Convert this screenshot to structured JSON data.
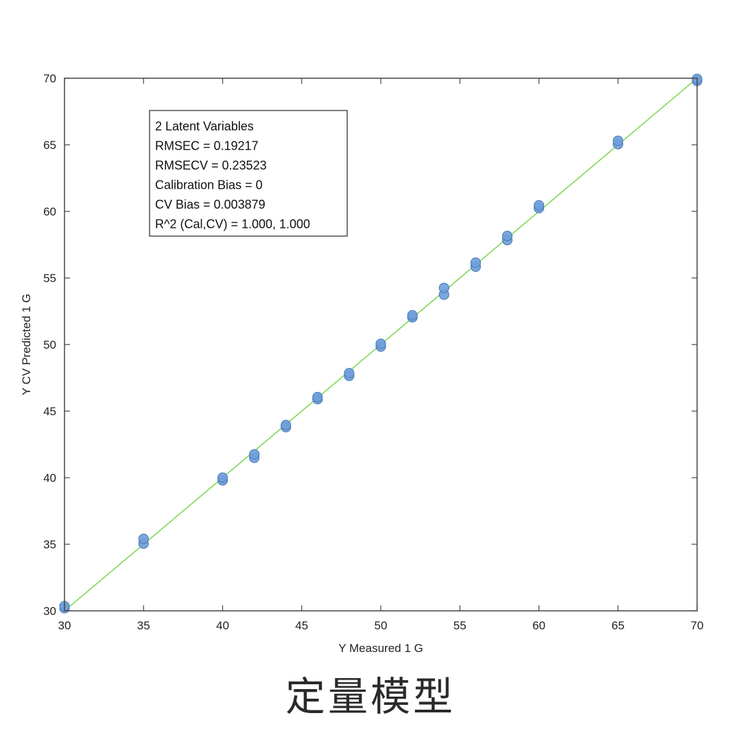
{
  "caption": "定量模型",
  "chart_data": {
    "type": "scatter",
    "xlabel": "Y Measured 1 G",
    "ylabel": "Y CV Predicted 1 G",
    "xlim": [
      30,
      70
    ],
    "ylim": [
      30,
      70
    ],
    "xticks": [
      30,
      35,
      40,
      45,
      50,
      55,
      60,
      65,
      70
    ],
    "yticks": [
      30,
      35,
      40,
      45,
      50,
      55,
      60,
      65,
      70
    ],
    "grid": false,
    "fit_line": {
      "x": [
        30,
        70
      ],
      "y": [
        30,
        70
      ],
      "color": "#7ed957"
    },
    "marker_color": "#6f9fd8",
    "marker_edge": "#4f7fbf",
    "annotation": [
      "2 Latent Variables",
      "RMSEC = 0.19217",
      "RMSECV = 0.23523",
      "Calibration Bias = 0",
      "CV Bias = 0.003879",
      "R^2 (Cal,CV) = 1.000, 1.000"
    ],
    "points": [
      {
        "x": 30,
        "y": 30.2
      },
      {
        "x": 30,
        "y": 30.35
      },
      {
        "x": 35,
        "y": 35.05
      },
      {
        "x": 35,
        "y": 35.4
      },
      {
        "x": 40,
        "y": 39.8
      },
      {
        "x": 40,
        "y": 40.0
      },
      {
        "x": 42,
        "y": 41.5
      },
      {
        "x": 42,
        "y": 41.75
      },
      {
        "x": 44,
        "y": 43.8
      },
      {
        "x": 44,
        "y": 43.95
      },
      {
        "x": 46,
        "y": 45.9
      },
      {
        "x": 46,
        "y": 46.05
      },
      {
        "x": 48,
        "y": 47.65
      },
      {
        "x": 48,
        "y": 47.85
      },
      {
        "x": 50,
        "y": 49.85
      },
      {
        "x": 50,
        "y": 50.05
      },
      {
        "x": 52,
        "y": 52.05
      },
      {
        "x": 52,
        "y": 52.2
      },
      {
        "x": 54,
        "y": 53.75
      },
      {
        "x": 54,
        "y": 54.25
      },
      {
        "x": 56,
        "y": 55.85
      },
      {
        "x": 56,
        "y": 56.15
      },
      {
        "x": 58,
        "y": 57.85
      },
      {
        "x": 58,
        "y": 58.15
      },
      {
        "x": 60,
        "y": 60.25
      },
      {
        "x": 60,
        "y": 60.45
      },
      {
        "x": 65,
        "y": 65.05
      },
      {
        "x": 65,
        "y": 65.3
      },
      {
        "x": 70,
        "y": 69.8
      },
      {
        "x": 70,
        "y": 69.95
      }
    ]
  }
}
